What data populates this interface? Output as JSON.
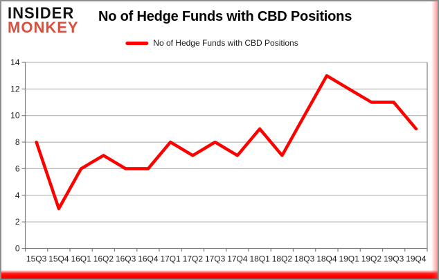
{
  "logo": {
    "line1": "INSIDER",
    "line2": "MONKEY",
    "line1_color": "#141414",
    "line2_color": "#d8503e"
  },
  "header": {
    "title": "No of Hedge Funds with CBD Positions"
  },
  "legend": {
    "label": "No of Hedge Funds with CBD Positions",
    "swatch_color": "#ff0000"
  },
  "chart_data": {
    "type": "line",
    "title": "No of Hedge Funds with CBD Positions",
    "categories": [
      "15Q3",
      "15Q4",
      "16Q1",
      "16Q2",
      "16Q3",
      "16Q4",
      "17Q1",
      "17Q2",
      "17Q3",
      "17Q4",
      "18Q1",
      "18Q2",
      "18Q3",
      "18Q4",
      "19Q1",
      "19Q2",
      "19Q3",
      "19Q4"
    ],
    "series": [
      {
        "name": "No of Hedge Funds with CBD Positions",
        "color": "#ff0000",
        "values": [
          8,
          3,
          6,
          7,
          6,
          6,
          8,
          7,
          8,
          7,
          9,
          7,
          10,
          13,
          12,
          11,
          11,
          9
        ]
      }
    ],
    "xlabel": "",
    "ylabel": "",
    "ylim": [
      0,
      14
    ],
    "yticks": [
      0,
      2,
      4,
      6,
      8,
      10,
      12,
      14
    ],
    "grid": true,
    "legend_position": "top-center"
  },
  "colors": {
    "line": "#ff0000",
    "gridline": "#a6a6a6",
    "axis": "#7f7f7f",
    "tick_label": "#1f1f1f",
    "bottom_bar": "#fe0000",
    "border": "#8c8c8c"
  }
}
